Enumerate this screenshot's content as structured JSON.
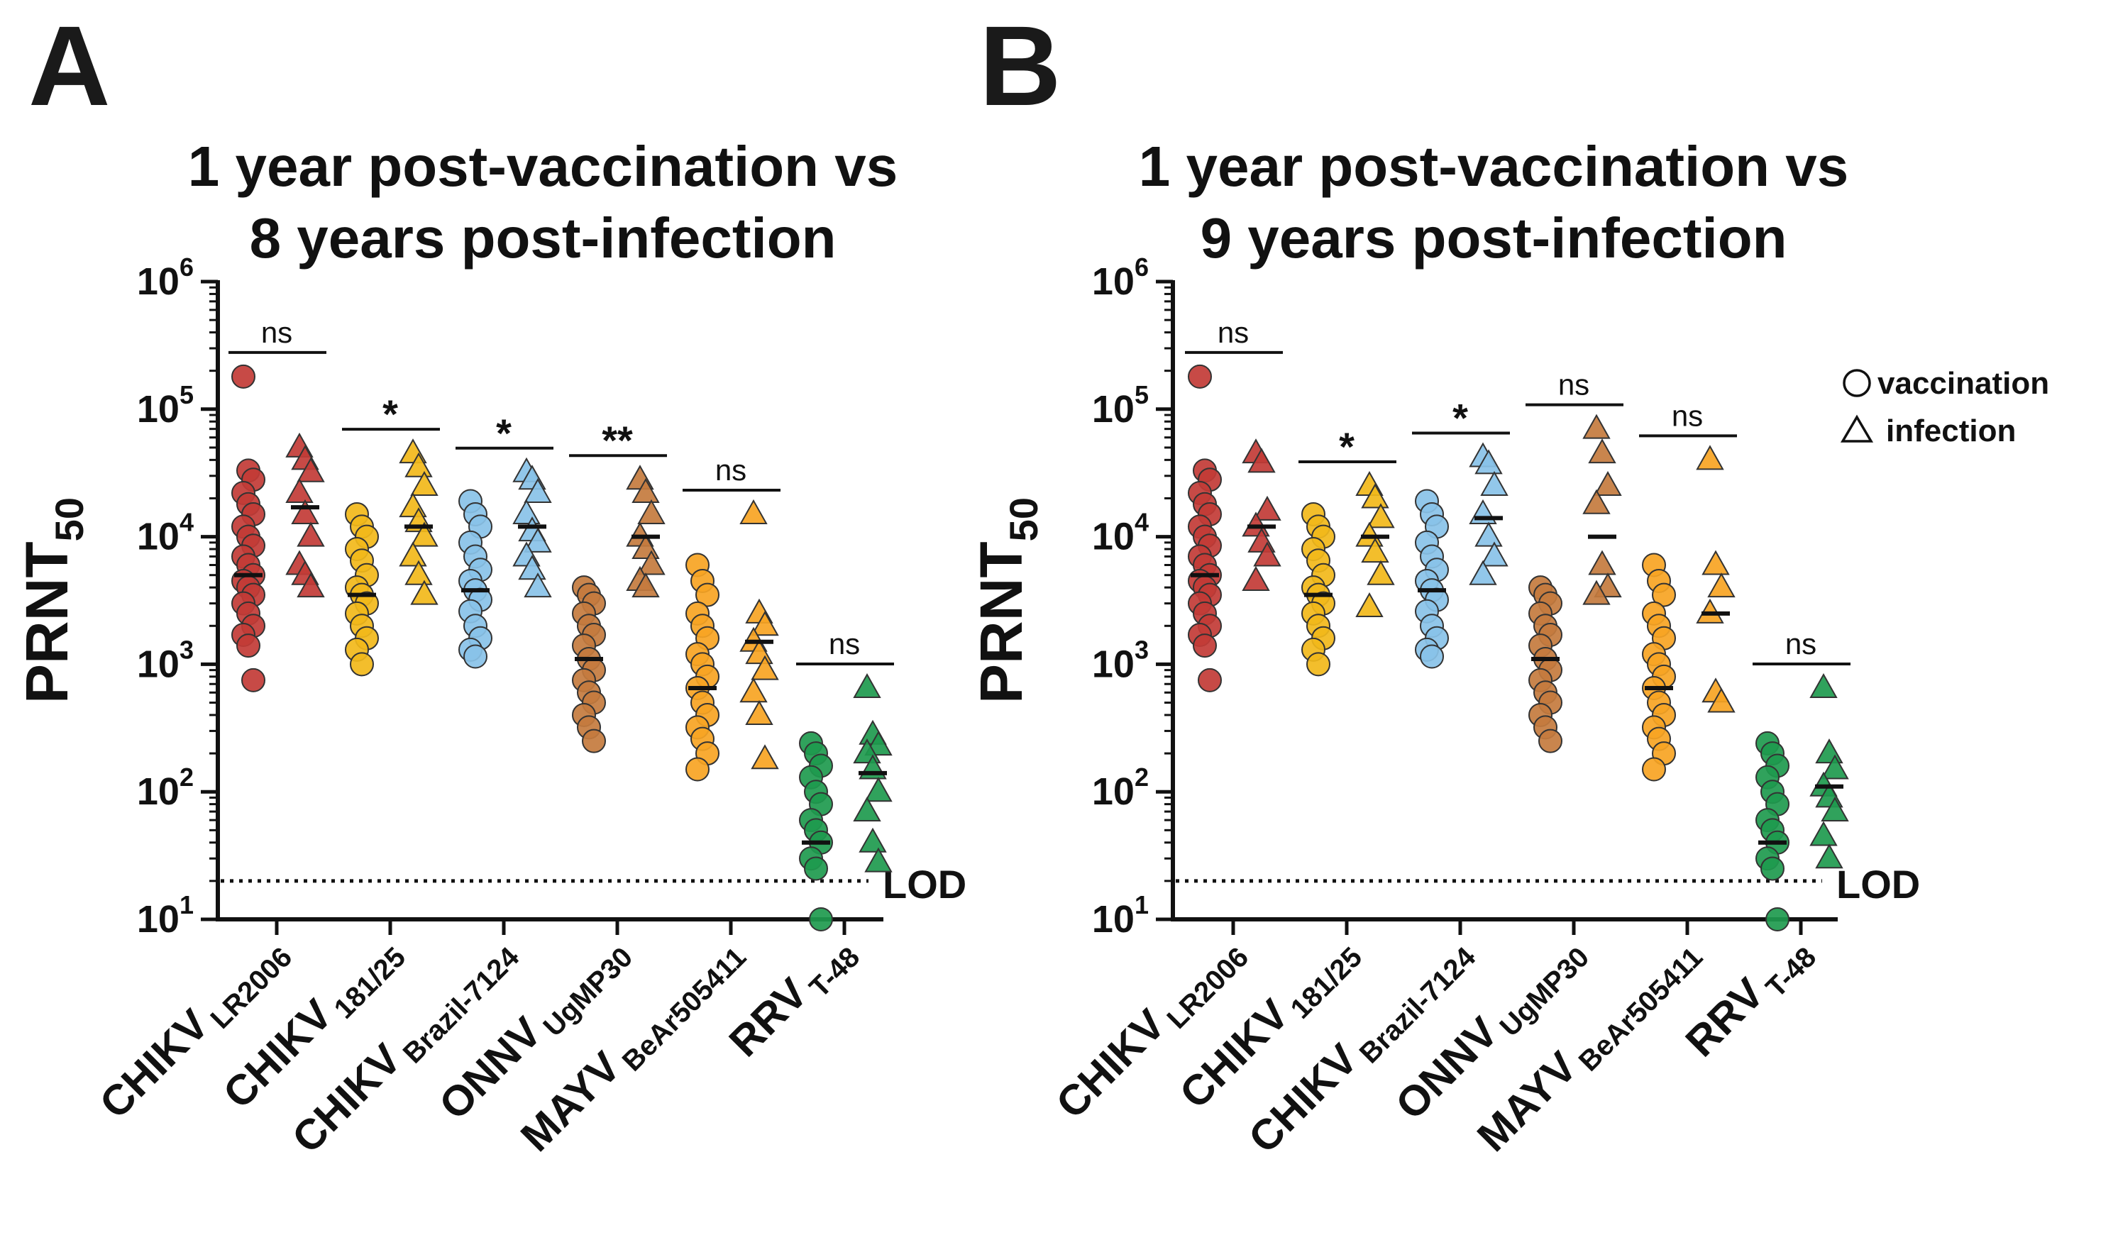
{
  "chart_data": [
    {
      "panel": "A",
      "type": "scatter",
      "title_lines": [
        "1 year post-vaccination vs",
        "8 years post-infection"
      ],
      "ylabel": "PRNT",
      "ylabel_sub": "50",
      "yscale": "log",
      "ylim": [
        10,
        1000000
      ],
      "yticks": [
        {
          "base": "10",
          "exp": "1"
        },
        {
          "base": "10",
          "exp": "2"
        },
        {
          "base": "10",
          "exp": "3"
        },
        {
          "base": "10",
          "exp": "4"
        },
        {
          "base": "10",
          "exp": "5"
        },
        {
          "base": "10",
          "exp": "6"
        }
      ],
      "lod": {
        "value": 20,
        "label": "LOD"
      },
      "categories": [
        {
          "name": "CHIKV",
          "sub": "LR2006",
          "color": "#c23b36",
          "sig": "ns",
          "vaccination": [
            180000,
            33000,
            28000,
            22000,
            18000,
            15000,
            12000,
            10000,
            8500,
            7000,
            6000,
            5000,
            4500,
            4000,
            3500,
            3000,
            2500,
            2000,
            1700,
            1400,
            750
          ],
          "vaccination_median": 5000,
          "infection": [
            50000,
            40000,
            32000,
            22000,
            15000,
            10000,
            6000,
            5000,
            4000
          ],
          "infection_median": 17000
        },
        {
          "name": "CHIKV",
          "sub": "181/25",
          "color": "#f2b81a",
          "sig": "*",
          "vaccination": [
            15000,
            12000,
            10000,
            8000,
            6500,
            5000,
            4000,
            3500,
            3000,
            2500,
            2000,
            1600,
            1300,
            1000
          ],
          "vaccination_median": 3500,
          "infection": [
            45000,
            35000,
            25000,
            17000,
            13000,
            10000,
            7000,
            5000,
            3500
          ],
          "infection_median": 12000
        },
        {
          "name": "CHIKV",
          "sub": "Brazil-7124",
          "color": "#89c2e8",
          "sig": "*",
          "vaccination": [
            19000,
            15000,
            12000,
            9000,
            7000,
            5500,
            4500,
            3800,
            3200,
            2600,
            2000,
            1600,
            1300,
            1150
          ],
          "vaccination_median": 3800,
          "infection": [
            32000,
            28000,
            22000,
            15000,
            11000,
            9000,
            7000,
            5500,
            4000
          ],
          "infection_median": 12000
        },
        {
          "name": "ONNV",
          "sub": "UgMP30",
          "color": "#c47b3e",
          "sig": "**",
          "vaccination": [
            4000,
            3500,
            3000,
            2500,
            2000,
            1700,
            1400,
            1100,
            900,
            750,
            600,
            500,
            400,
            320,
            250
          ],
          "vaccination_median": 1100,
          "infection": [
            28000,
            22000,
            15000,
            10000,
            8000,
            6000,
            4500,
            4000
          ],
          "infection_median": 10000
        },
        {
          "name": "MAYV",
          "sub": "BeAr505411",
          "color": "#f7a423",
          "sig": "ns",
          "vaccination": [
            6000,
            4500,
            3500,
            2500,
            2000,
            1600,
            1200,
            1000,
            800,
            650,
            500,
            400,
            320,
            260,
            200,
            150
          ],
          "vaccination_median": 650,
          "infection": [
            15000,
            2500,
            2000,
            1500,
            1200,
            900,
            600,
            400,
            180
          ],
          "infection_median": 1500
        },
        {
          "name": "RRV",
          "sub": "T-48",
          "color": "#1e9a4e",
          "sig": "ns",
          "vaccination": [
            240,
            200,
            160,
            130,
            100,
            80,
            60,
            50,
            40,
            30,
            25,
            10
          ],
          "vaccination_median": 40,
          "infection": [
            650,
            280,
            230,
            200,
            150,
            100,
            70,
            40,
            28
          ],
          "infection_median": 140
        }
      ]
    },
    {
      "panel": "B",
      "type": "scatter",
      "title_lines": [
        "1 year post-vaccination vs",
        "9 years post-infection"
      ],
      "ylabel": "PRNT",
      "ylabel_sub": "50",
      "yscale": "log",
      "ylim": [
        10,
        1000000
      ],
      "yticks": [
        {
          "base": "10",
          "exp": "1"
        },
        {
          "base": "10",
          "exp": "2"
        },
        {
          "base": "10",
          "exp": "3"
        },
        {
          "base": "10",
          "exp": "4"
        },
        {
          "base": "10",
          "exp": "5"
        },
        {
          "base": "10",
          "exp": "6"
        }
      ],
      "lod": {
        "value": 20,
        "label": "LOD"
      },
      "categories": [
        {
          "name": "CHIKV",
          "sub": "LR2006",
          "color": "#c23b36",
          "sig": "ns",
          "vaccination": [
            180000,
            33000,
            28000,
            22000,
            18000,
            15000,
            12000,
            10000,
            8500,
            7000,
            6000,
            5000,
            4500,
            4000,
            3500,
            3000,
            2500,
            2000,
            1700,
            1400,
            750
          ],
          "vaccination_median": 5000,
          "infection": [
            45000,
            38000,
            16000,
            12000,
            9000,
            7000,
            4500
          ],
          "infection_median": 12000
        },
        {
          "name": "CHIKV",
          "sub": "181/25",
          "color": "#f2b81a",
          "sig": "*",
          "vaccination": [
            15000,
            12000,
            10000,
            8000,
            6500,
            5000,
            4000,
            3500,
            3000,
            2500,
            2000,
            1600,
            1300,
            1000
          ],
          "vaccination_median": 3500,
          "infection": [
            25000,
            20000,
            14000,
            10000,
            7500,
            5000,
            2800
          ],
          "infection_median": 10000
        },
        {
          "name": "CHIKV",
          "sub": "Brazil-7124",
          "color": "#89c2e8",
          "sig": "*",
          "vaccination": [
            19000,
            15000,
            12000,
            9000,
            7000,
            5500,
            4500,
            3800,
            3200,
            2600,
            2000,
            1600,
            1300,
            1150
          ],
          "vaccination_median": 3800,
          "infection": [
            42000,
            37000,
            25000,
            15000,
            10000,
            7000,
            5000
          ],
          "infection_median": 14000
        },
        {
          "name": "ONNV",
          "sub": "UgMP30",
          "color": "#c47b3e",
          "sig": "ns",
          "vaccination": [
            4000,
            3500,
            3000,
            2500,
            2000,
            1700,
            1400,
            1100,
            900,
            750,
            600,
            500,
            400,
            320,
            250
          ],
          "vaccination_median": 1100,
          "infection": [
            70000,
            45000,
            25000,
            18000,
            6000,
            4000,
            3500
          ],
          "infection_median": 10000
        },
        {
          "name": "MAYV",
          "sub": "BeAr505411",
          "color": "#f7a423",
          "sig": "ns",
          "vaccination": [
            6000,
            4500,
            3500,
            2500,
            2000,
            1600,
            1200,
            1000,
            800,
            650,
            500,
            400,
            320,
            260,
            200,
            150
          ],
          "vaccination_median": 650,
          "infection": [
            40000,
            6000,
            4000,
            2500,
            600,
            500
          ],
          "infection_median": 2500
        },
        {
          "name": "RRV",
          "sub": "T-48",
          "color": "#1e9a4e",
          "sig": "ns",
          "vaccination": [
            240,
            200,
            160,
            130,
            100,
            80,
            60,
            50,
            40,
            30,
            25,
            10
          ],
          "vaccination_median": 40,
          "infection": [
            650,
            200,
            150,
            110,
            90,
            70,
            45,
            30
          ],
          "infection_median": 110
        }
      ]
    }
  ],
  "legend": {
    "vaccination_label": "vaccination",
    "infection_label": "infection"
  }
}
